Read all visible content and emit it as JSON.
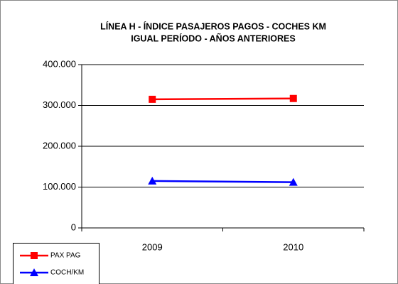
{
  "chart_data": {
    "type": "line",
    "title": [
      "LÍNEA H - ÍNDICE PASAJEROS PAGOS - COCHES KM",
      "IGUAL PERÍODO - AÑOS ANTERIORES"
    ],
    "categories": [
      "2009",
      "2010"
    ],
    "series": [
      {
        "name": "PAX PAG",
        "color": "#ff0000",
        "marker": "square",
        "values": [
          315000,
          317000
        ]
      },
      {
        "name": "COCH/KM",
        "color": "#0000ff",
        "marker": "triangle",
        "values": [
          115000,
          112000
        ]
      }
    ],
    "ylim": [
      0,
      400000
    ],
    "yticks": [
      0,
      {
        "value": 100000,
        "label": "100.000"
      },
      {
        "value": 200000,
        "label": "200.000"
      },
      {
        "value": 300000,
        "label": "300.000"
      },
      {
        "value": 400000,
        "label": "400.000"
      }
    ],
    "grid": true,
    "legend": "bottom-left"
  }
}
